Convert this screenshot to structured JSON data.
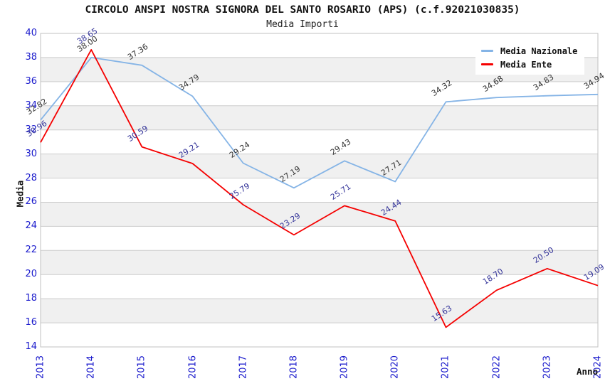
{
  "header": {
    "title": "CIRCOLO ANSPI NOSTRA SIGNORA DEL SANTO ROSARIO (APS) (c.f.92021030835)",
    "subtitle": "Media Importi"
  },
  "chart_data": {
    "type": "line",
    "title": "CIRCOLO ANSPI NOSTRA SIGNORA DEL SANTO ROSARIO (APS) (c.f.92021030835)",
    "subtitle": "Media Importi",
    "x": [
      "2013",
      "2014",
      "2015",
      "2016",
      "2017",
      "2018",
      "2019",
      "2020",
      "2021",
      "2022",
      "2023",
      "2024"
    ],
    "series": [
      {
        "name": "Media Nazionale",
        "color": "#85B4E6",
        "label_color": "#333333",
        "values": [
          32.82,
          38.0,
          37.36,
          34.79,
          29.24,
          27.19,
          29.43,
          27.71,
          34.32,
          34.68,
          34.83,
          34.94
        ]
      },
      {
        "name": "Media Ente",
        "color": "#F50000",
        "label_color": "#333399",
        "values": [
          30.96,
          38.65,
          30.59,
          29.21,
          25.79,
          23.29,
          25.71,
          24.44,
          15.63,
          18.7,
          20.5,
          19.09
        ]
      }
    ],
    "xlabel": "Anno",
    "ylabel": "Media",
    "ylim": [
      14,
      40
    ],
    "ytick_step": 2,
    "grid": true,
    "legend_position": "top-right",
    "colors": {
      "tick_label": "#1a1acc",
      "band": "#f0f0f0",
      "gridline": "#cccccc",
      "plot_border": "#c0c0c0",
      "background": "#ffffff"
    }
  }
}
